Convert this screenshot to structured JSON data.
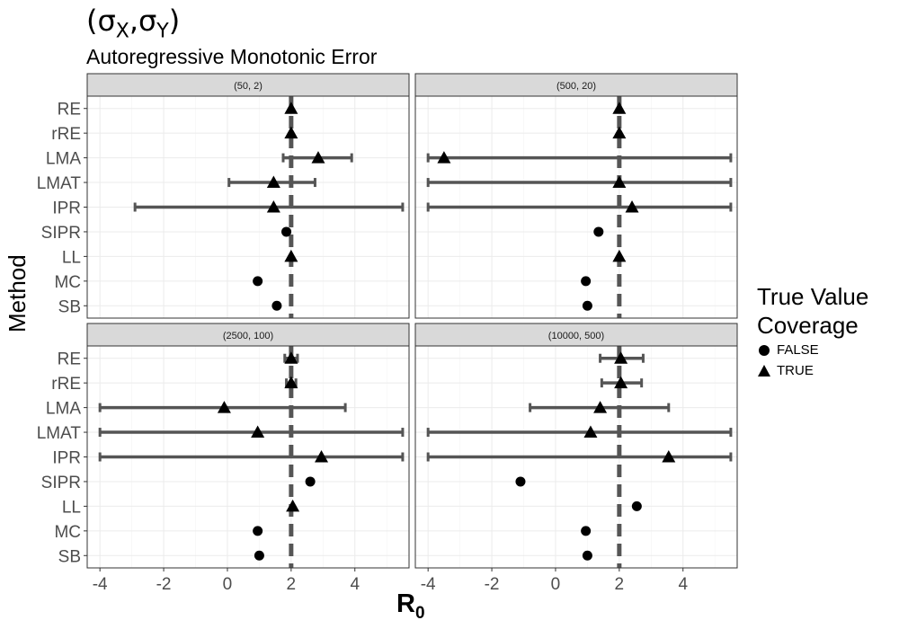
{
  "title": "(σX,σY)",
  "title_parts": {
    "sigma_x": "σ",
    "x": "X",
    "sep": ",",
    "sigma_y": "σ",
    "y": "Y",
    "open": "(",
    "close": ")"
  },
  "subtitle": "Autoregressive Monotonic Error",
  "ylabel": "Method",
  "xlabel_main": "R",
  "xlabel_sub": "0",
  "legend": {
    "title_line1": "True Value",
    "title_line2": "Coverage",
    "items": [
      {
        "label": "FALSE",
        "shape": "circle"
      },
      {
        "label": "TRUE",
        "shape": "triangle"
      }
    ]
  },
  "chart_data": {
    "type": "scatter",
    "methods": [
      "RE",
      "rRE",
      "LMA",
      "LMAT",
      "IPR",
      "SIPR",
      "LL",
      "MC",
      "SB"
    ],
    "xlim": [
      -4.4,
      5.7
    ],
    "xticks": [
      -4,
      -2,
      0,
      2,
      4
    ],
    "xtick_labels": [
      "-4",
      "-2",
      "0",
      "2",
      "4"
    ],
    "reference_line": 2,
    "grid": true,
    "legend_position": "right",
    "panels": [
      {
        "label": "(50, 2)",
        "points": [
          {
            "method": "RE",
            "est": 2.0,
            "lo": 2.0,
            "hi": 2.0,
            "covered": true
          },
          {
            "method": "rRE",
            "est": 2.0,
            "lo": 2.0,
            "hi": 2.0,
            "covered": true
          },
          {
            "method": "LMA",
            "est": 2.85,
            "lo": 1.75,
            "hi": 3.9,
            "covered": true
          },
          {
            "method": "LMAT",
            "est": 1.45,
            "lo": 0.05,
            "hi": 2.75,
            "covered": true
          },
          {
            "method": "IPR",
            "est": 1.45,
            "lo": -2.9,
            "hi": 5.5,
            "covered": true
          },
          {
            "method": "SIPR",
            "est": 1.85,
            "lo": 1.85,
            "hi": 1.85,
            "covered": false
          },
          {
            "method": "LL",
            "est": 2.0,
            "lo": 2.0,
            "hi": 2.0,
            "covered": true
          },
          {
            "method": "MC",
            "est": 0.95,
            "lo": 0.95,
            "hi": 0.95,
            "covered": false
          },
          {
            "method": "SB",
            "est": 1.55,
            "lo": 1.55,
            "hi": 1.55,
            "covered": false
          }
        ]
      },
      {
        "label": "(500, 20)",
        "points": [
          {
            "method": "RE",
            "est": 2.0,
            "lo": 2.0,
            "hi": 2.0,
            "covered": true
          },
          {
            "method": "rRE",
            "est": 2.0,
            "lo": 2.0,
            "hi": 2.0,
            "covered": true
          },
          {
            "method": "LMA",
            "est": -3.5,
            "lo": -4.0,
            "hi": 5.5,
            "covered": true
          },
          {
            "method": "LMAT",
            "est": 2.0,
            "lo": -4.0,
            "hi": 5.5,
            "covered": true
          },
          {
            "method": "IPR",
            "est": 2.4,
            "lo": -4.0,
            "hi": 5.5,
            "covered": true
          },
          {
            "method": "SIPR",
            "est": 1.35,
            "lo": 1.35,
            "hi": 1.35,
            "covered": false
          },
          {
            "method": "LL",
            "est": 2.0,
            "lo": 2.0,
            "hi": 2.0,
            "covered": true
          },
          {
            "method": "MC",
            "est": 0.95,
            "lo": 0.95,
            "hi": 0.95,
            "covered": false
          },
          {
            "method": "SB",
            "est": 1.0,
            "lo": 1.0,
            "hi": 1.0,
            "covered": false
          }
        ]
      },
      {
        "label": "(2500, 100)",
        "points": [
          {
            "method": "RE",
            "est": 2.0,
            "lo": 1.8,
            "hi": 2.2,
            "covered": true
          },
          {
            "method": "rRE",
            "est": 2.0,
            "lo": 1.85,
            "hi": 2.15,
            "covered": true
          },
          {
            "method": "LMA",
            "est": -0.1,
            "lo": -4.0,
            "hi": 3.7,
            "covered": true
          },
          {
            "method": "LMAT",
            "est": 0.95,
            "lo": -4.0,
            "hi": 5.5,
            "covered": true
          },
          {
            "method": "IPR",
            "est": 2.95,
            "lo": -4.0,
            "hi": 5.5,
            "covered": true
          },
          {
            "method": "SIPR",
            "est": 2.6,
            "lo": 2.6,
            "hi": 2.6,
            "covered": false
          },
          {
            "method": "LL",
            "est": 2.05,
            "lo": 2.05,
            "hi": 2.05,
            "covered": true
          },
          {
            "method": "MC",
            "est": 0.95,
            "lo": 0.95,
            "hi": 0.95,
            "covered": false
          },
          {
            "method": "SB",
            "est": 1.0,
            "lo": 1.0,
            "hi": 1.0,
            "covered": false
          }
        ]
      },
      {
        "label": "(10000, 500)",
        "points": [
          {
            "method": "RE",
            "est": 2.05,
            "lo": 1.4,
            "hi": 2.75,
            "covered": true
          },
          {
            "method": "rRE",
            "est": 2.05,
            "lo": 1.45,
            "hi": 2.7,
            "covered": true
          },
          {
            "method": "LMA",
            "est": 1.4,
            "lo": -0.8,
            "hi": 3.55,
            "covered": true
          },
          {
            "method": "LMAT",
            "est": 1.1,
            "lo": -4.0,
            "hi": 5.5,
            "covered": true
          },
          {
            "method": "IPR",
            "est": 3.55,
            "lo": -4.0,
            "hi": 5.5,
            "covered": true
          },
          {
            "method": "SIPR",
            "est": -1.1,
            "lo": -1.1,
            "hi": -1.1,
            "covered": false
          },
          {
            "method": "LL",
            "est": 2.55,
            "lo": 2.55,
            "hi": 2.55,
            "covered": false
          },
          {
            "method": "MC",
            "est": 0.95,
            "lo": 0.95,
            "hi": 0.95,
            "covered": false
          },
          {
            "method": "SB",
            "est": 1.0,
            "lo": 1.0,
            "hi": 1.0,
            "covered": false
          }
        ]
      }
    ]
  }
}
